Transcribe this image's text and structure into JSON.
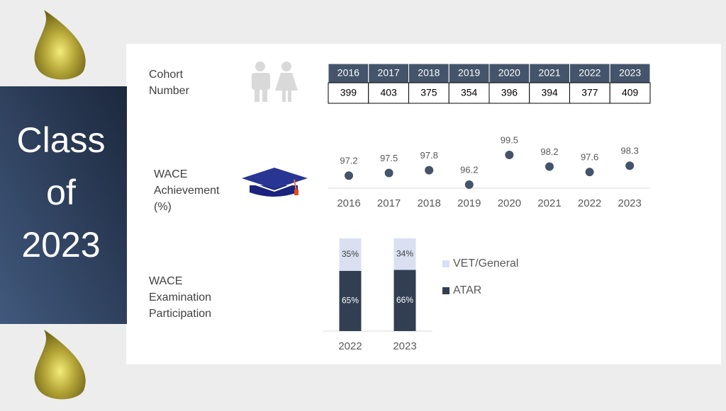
{
  "title": [
    "Class",
    "of",
    "2023"
  ],
  "cohort": {
    "label": [
      "Cohort",
      "Number"
    ],
    "header": [
      "2016",
      "2017",
      "2018",
      "2019",
      "2020",
      "2021",
      "2022",
      "2023"
    ],
    "row": [
      399,
      403,
      375,
      354,
      396,
      394,
      377,
      409
    ]
  },
  "chart_data": [
    {
      "type": "dot",
      "label": [
        "WACE",
        "Achievement",
        "(%)"
      ],
      "categories": [
        "2016",
        "2017",
        "2018",
        "2019",
        "2020",
        "2021",
        "2022",
        "2023"
      ],
      "values": [
        97.2,
        97.5,
        97.8,
        96.2,
        99.5,
        98.2,
        97.6,
        98.3
      ],
      "color": "#44546a"
    },
    {
      "type": "stacked_bar",
      "label": [
        "WACE",
        "Examination",
        "Participation"
      ],
      "categories": [
        "2022",
        "2023"
      ],
      "series": [
        {
          "name": "ATAR",
          "color": "#323e52",
          "values": [
            65,
            66
          ],
          "value_labels": [
            "65%",
            "66%"
          ]
        },
        {
          "name": "VET/General",
          "color": "#dae0f2",
          "values": [
            35,
            34
          ],
          "value_labels": [
            "35%",
            "34%"
          ]
        }
      ]
    }
  ]
}
